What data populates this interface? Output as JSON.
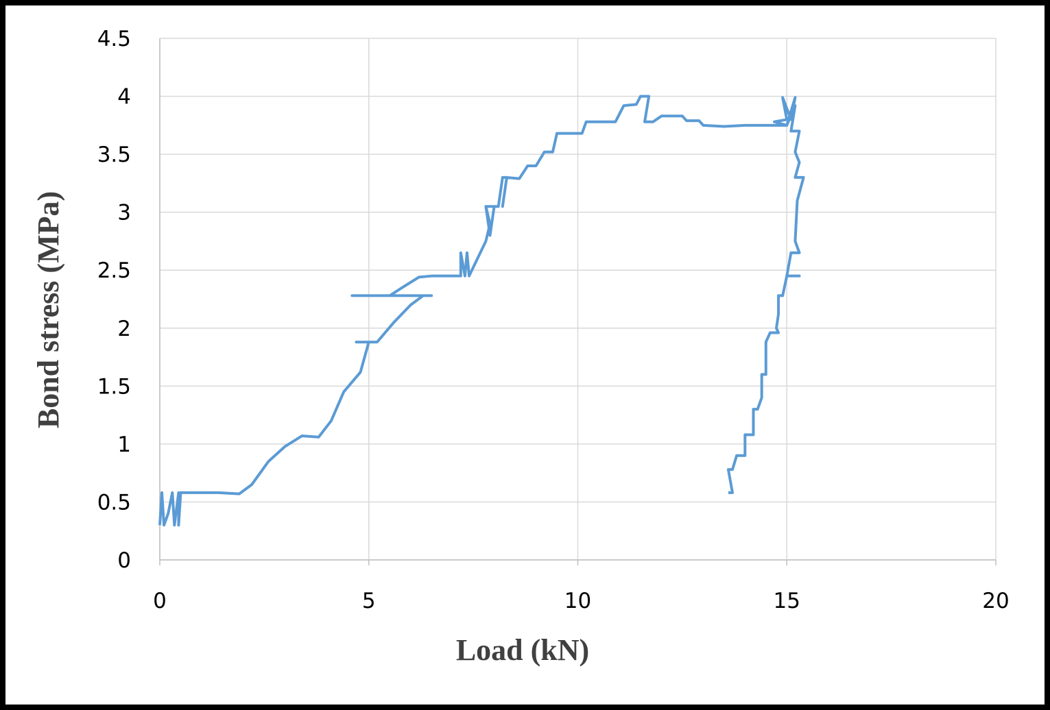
{
  "chart_data": {
    "type": "line",
    "x_label": "Load (kN)",
    "y_label": "Bond stress (MPa)",
    "xlim": [
      0,
      20
    ],
    "xticks": [
      0,
      5,
      10,
      15,
      20
    ],
    "ylim": [
      0,
      4.5
    ],
    "yticks": [
      0,
      0.5,
      1,
      1.5,
      2,
      2.5,
      3,
      3.5,
      4,
      4.5
    ],
    "grid": true,
    "series": [
      {
        "color": "#5b9bd5",
        "x": [
          0,
          0.05,
          0.1,
          0.2,
          0.3,
          0.35,
          0.45,
          0.45,
          0.5,
          1.4,
          1.9,
          2.2,
          2.6,
          3.0,
          3.4,
          3.8,
          4.1,
          4.4,
          4.8,
          5.0,
          4.7,
          5.2,
          5.6,
          6.0,
          6.3,
          6.5,
          4.6,
          5.5,
          5.8,
          6.2,
          6.5,
          7.2,
          7.2,
          7.3,
          7.35,
          7.4,
          7.6,
          7.8,
          7.9,
          7.8,
          8.0,
          7.9,
          7.8,
          8.1,
          8.2,
          8.3,
          8.2,
          8.3,
          8.6,
          8.8,
          9.0,
          9.2,
          9.4,
          9.5,
          10.1,
          10.2,
          10.9,
          11.1,
          11.4,
          11.5,
          11.7,
          11.6,
          11.8,
          12.0,
          12.5,
          12.6,
          12.9,
          13.0,
          13.5,
          14.0,
          14.8,
          15.0,
          14.7,
          15.0,
          14.9,
          15.1,
          15.2,
          15.0,
          15.2,
          15.1,
          15.3,
          15.2,
          15.3,
          15.2,
          15.4,
          15.25,
          15.2,
          15.3,
          15.1,
          15.0,
          15.3,
          15.0,
          14.9,
          14.8,
          14.8,
          14.75,
          14.8,
          14.6,
          14.5,
          14.5,
          14.4,
          14.4,
          14.3,
          14.2,
          14.2,
          14.0,
          14.0,
          13.8,
          13.7,
          13.6,
          13.7,
          13.6
        ],
        "values": [
          0.3,
          0.58,
          0.3,
          0.4,
          0.58,
          0.3,
          0.58,
          0.3,
          0.58,
          0.58,
          0.57,
          0.65,
          0.85,
          0.98,
          1.07,
          1.06,
          1.2,
          1.45,
          1.62,
          1.88,
          1.88,
          1.88,
          2.05,
          2.2,
          2.28,
          2.28,
          2.28,
          2.28,
          2.35,
          2.44,
          2.45,
          2.45,
          2.65,
          2.45,
          2.65,
          2.45,
          2.6,
          2.75,
          2.9,
          3.05,
          3.05,
          2.8,
          3.05,
          3.05,
          3.3,
          3.3,
          3.05,
          3.3,
          3.29,
          3.4,
          3.4,
          3.52,
          3.52,
          3.68,
          3.68,
          3.78,
          3.78,
          3.92,
          3.93,
          4.0,
          4.0,
          3.78,
          3.78,
          3.83,
          3.83,
          3.79,
          3.79,
          3.75,
          3.74,
          3.75,
          3.75,
          3.75,
          3.78,
          3.8,
          3.99,
          3.8,
          3.99,
          3.75,
          3.92,
          3.7,
          3.7,
          3.52,
          3.43,
          3.3,
          3.3,
          3.1,
          2.75,
          2.65,
          2.65,
          2.45,
          2.45,
          2.45,
          2.28,
          2.28,
          2.12,
          2.0,
          1.96,
          1.96,
          1.88,
          1.6,
          1.6,
          1.4,
          1.3,
          1.3,
          1.08,
          1.08,
          0.9,
          0.9,
          0.78,
          0.78,
          0.58,
          0.58
        ]
      }
    ]
  }
}
